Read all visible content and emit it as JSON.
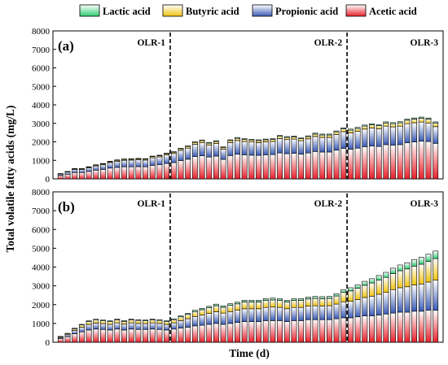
{
  "chart_data": {
    "type": "bar",
    "stacked": true,
    "xlabel": "Time (d)",
    "ylabel": "Total volatile fatty acids (mg/L)",
    "ylim": [
      0,
      8000
    ],
    "yticks": [
      0,
      1000,
      2000,
      3000,
      4000,
      5000,
      6000,
      7000,
      8000
    ],
    "grid": false,
    "legend_position": "top",
    "legend": [
      {
        "name": "Lactic acid",
        "color": "#2ecc71"
      },
      {
        "name": "Butyric acid",
        "color": "#f1c40f"
      },
      {
        "name": "Propionic acid",
        "color": "#3b5bb5"
      },
      {
        "name": "Acetic acid",
        "color": "#e8202a"
      }
    ],
    "series_order": [
      "Acetic acid",
      "Propionic acid",
      "Butyric acid",
      "Lactic acid"
    ],
    "panels": [
      {
        "label": "(a)",
        "olr_labels": [
          "OLR-1",
          "OLR-2",
          "OLR-3"
        ],
        "olr_boundaries_after_bar": [
          16,
          41
        ],
        "series": [
          {
            "name": "Acetic acid",
            "values": [
              180,
              250,
              340,
              340,
              400,
              470,
              510,
              580,
              620,
              650,
              650,
              660,
              650,
              730,
              760,
              830,
              880,
              990,
              1060,
              1200,
              1250,
              1180,
              1230,
              1050,
              1260,
              1330,
              1300,
              1280,
              1270,
              1300,
              1310,
              1400,
              1360,
              1380,
              1330,
              1400,
              1480,
              1450,
              1450,
              1550,
              1650,
              1600,
              1660,
              1740,
              1780,
              1750,
              1850,
              1820,
              1850,
              1950,
              2000,
              2040,
              2020,
              1920
            ]
          },
          {
            "name": "Propionic acid",
            "values": [
              80,
              120,
              170,
              170,
              200,
              230,
              260,
              300,
              330,
              350,
              360,
              370,
              360,
              410,
              430,
              460,
              490,
              550,
              600,
              670,
              700,
              650,
              680,
              560,
              700,
              740,
              720,
              710,
              690,
              700,
              710,
              780,
              760,
              770,
              730,
              760,
              810,
              790,
              790,
              850,
              900,
              880,
              910,
              950,
              970,
              960,
              1000,
              990,
              1000,
              1030,
              1030,
              1030,
              1000,
              900
            ]
          },
          {
            "name": "Butyric acid",
            "values": [
              15,
              20,
              30,
              30,
              35,
              40,
              40,
              45,
              50,
              50,
              50,
              55,
              55,
              60,
              60,
              70,
              70,
              80,
              90,
              100,
              110,
              100,
              110,
              90,
              110,
              120,
              110,
              110,
              110,
              110,
              110,
              120,
              120,
              120,
              110,
              120,
              130,
              130,
              130,
              140,
              150,
              150,
              150,
              160,
              170,
              160,
              170,
              170,
              180,
              190,
              200,
              210,
              210,
              200
            ]
          },
          {
            "name": "Lactic acid",
            "values": [
              10,
              10,
              15,
              15,
              20,
              20,
              20,
              25,
              25,
              25,
              25,
              25,
              25,
              30,
              30,
              30,
              30,
              35,
              40,
              40,
              40,
              40,
              40,
              35,
              40,
              45,
              40,
              40,
              40,
              40,
              40,
              45,
              45,
              45,
              40,
              45,
              50,
              50,
              50,
              50,
              60,
              60,
              60,
              60,
              60,
              60,
              60,
              60,
              60,
              60,
              60,
              60,
              60,
              60
            ]
          }
        ]
      },
      {
        "label": "(b)",
        "olr_labels": [
          "OLR-1",
          "OLR-2",
          "OLR-3"
        ],
        "olr_boundaries_after_bar": [
          16,
          41
        ],
        "series": [
          {
            "name": "Acetic acid",
            "values": [
              200,
              300,
              450,
              550,
              650,
              700,
              680,
              650,
              700,
              650,
              700,
              680,
              680,
              700,
              680,
              650,
              700,
              750,
              800,
              870,
              900,
              950,
              1000,
              950,
              1000,
              1050,
              1100,
              1100,
              1100,
              1150,
              1150,
              1150,
              1100,
              1150,
              1150,
              1200,
              1200,
              1200,
              1200,
              1250,
              1300,
              1300,
              1350,
              1400,
              1400,
              1450,
              1500,
              1550,
              1600,
              1600,
              1650,
              1650,
              1700,
              1700
            ]
          },
          {
            "name": "Propionic acid",
            "values": [
              60,
              100,
              180,
              250,
              300,
              320,
              310,
              300,
              330,
              310,
              330,
              320,
              310,
              330,
              320,
              300,
              330,
              400,
              450,
              500,
              550,
              580,
              620,
              600,
              630,
              650,
              680,
              680,
              680,
              700,
              720,
              700,
              680,
              700,
              700,
              720,
              740,
              730,
              740,
              780,
              850,
              880,
              920,
              980,
              1050,
              1100,
              1150,
              1250,
              1300,
              1350,
              1400,
              1450,
              1500,
              1600
            ]
          },
          {
            "name": "Butyric acid",
            "values": [
              40,
              60,
              90,
              120,
              150,
              160,
              150,
              150,
              160,
              150,
              160,
              160,
              150,
              160,
              160,
              150,
              170,
              200,
              230,
              260,
              280,
              300,
              320,
              310,
              330,
              340,
              360,
              360,
              360,
              370,
              380,
              370,
              360,
              370,
              370,
              380,
              390,
              390,
              390,
              430,
              500,
              550,
              600,
              650,
              700,
              750,
              800,
              850,
              900,
              950,
              1000,
              1050,
              1100,
              1150
            ]
          },
          {
            "name": "Lactic acid",
            "values": [
              10,
              15,
              25,
              30,
              40,
              40,
              40,
              40,
              40,
              40,
              40,
              40,
              40,
              40,
              40,
              40,
              45,
              55,
              60,
              70,
              75,
              80,
              85,
              80,
              90,
              90,
              95,
              95,
              95,
              100,
              100,
              100,
              95,
              100,
              100,
              100,
              105,
              105,
              105,
              120,
              150,
              170,
              190,
              210,
              230,
              250,
              270,
              290,
              310,
              330,
              350,
              370,
              380,
              400
            ]
          }
        ]
      }
    ]
  }
}
